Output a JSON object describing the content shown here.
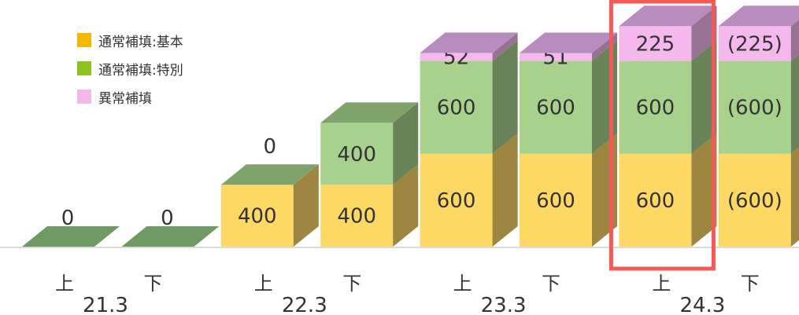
{
  "chart_data": {
    "type": "bar",
    "stacked": true,
    "categories": [
      "上",
      "下",
      "上",
      "下",
      "上",
      "下",
      "上",
      "下"
    ],
    "periods": [
      "21.3",
      "22.3",
      "23.3",
      "24.3"
    ],
    "series": [
      {
        "name": "通常補填:基本",
        "values": [
          0,
          0,
          400,
          400,
          600,
          600,
          600,
          600
        ],
        "color": "#FDD865"
      },
      {
        "name": "通常補填:特別",
        "values": [
          0,
          0,
          0,
          400,
          600,
          600,
          600,
          600
        ],
        "color": "#A9D18E"
      },
      {
        "name": "異常補填",
        "values": [
          0,
          0,
          0,
          0,
          52,
          51,
          225,
          225
        ],
        "color": "#F4B8EC"
      }
    ],
    "segment_labels": [
      [
        "",
        "",
        "",
        ""
      ],
      [
        "",
        "",
        "",
        ""
      ],
      [
        "400",
        "",
        "",
        "0"
      ],
      [
        "400",
        "400",
        "",
        ""
      ],
      [
        "600",
        "600",
        "52",
        ""
      ],
      [
        "600",
        "600",
        "51",
        ""
      ],
      [
        "600",
        "600",
        "225",
        ""
      ],
      [
        "(600)",
        "(600)",
        "(225)",
        ""
      ]
    ],
    "zero_labels": [
      "0",
      "0",
      "",
      "",
      "",
      "",
      "",
      ""
    ],
    "highlight_index": 6,
    "highlight_color": "#F25A5A",
    "legend_colors": [
      "#F5B800",
      "#8DC21F",
      "#F4B8EC"
    ],
    "ylim": [
      0,
      1500
    ],
    "grid": false,
    "legend": "top-left"
  }
}
